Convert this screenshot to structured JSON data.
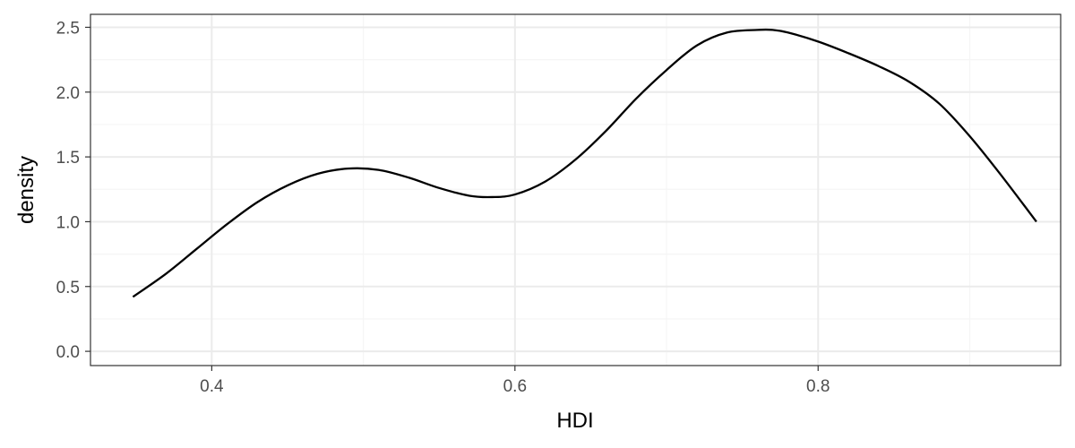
{
  "chart_data": {
    "type": "line",
    "title": "",
    "xlabel": "HDI",
    "ylabel": "density",
    "xlim": [
      0.32,
      0.96
    ],
    "ylim": [
      -0.11,
      2.6
    ],
    "x_ticks": [
      0.4,
      0.6,
      0.8
    ],
    "x_tick_labels": [
      "0.4",
      "0.6",
      "0.8"
    ],
    "y_ticks": [
      0.0,
      0.5,
      1.0,
      1.5,
      2.0,
      2.5
    ],
    "y_tick_labels": [
      "0.0",
      "0.5",
      "1.0",
      "1.5",
      "2.0",
      "2.5"
    ],
    "x_minor_ticks": [
      0.5,
      0.7,
      0.9
    ],
    "y_minor_ticks": [
      0.25,
      0.75,
      1.25,
      1.75,
      2.25
    ],
    "grid": true,
    "theme": "bw",
    "colors": {
      "line": "#000000",
      "grid_major": "#ebebeb",
      "grid_minor": "#f5f5f5",
      "panel_border": "#333333",
      "tick_text": "#4d4d4d"
    },
    "series": [
      {
        "x": [
          0.348,
          0.37,
          0.39,
          0.41,
          0.43,
          0.45,
          0.47,
          0.49,
          0.51,
          0.53,
          0.55,
          0.57,
          0.585,
          0.6,
          0.62,
          0.64,
          0.66,
          0.68,
          0.7,
          0.72,
          0.74,
          0.76,
          0.77,
          0.78,
          0.8,
          0.82,
          0.84,
          0.86,
          0.88,
          0.9,
          0.92,
          0.944
        ],
        "y": [
          0.42,
          0.6,
          0.79,
          0.98,
          1.15,
          1.28,
          1.37,
          1.41,
          1.4,
          1.34,
          1.26,
          1.2,
          1.19,
          1.21,
          1.31,
          1.48,
          1.7,
          1.95,
          2.17,
          2.36,
          2.46,
          2.48,
          2.48,
          2.46,
          2.39,
          2.3,
          2.2,
          2.08,
          1.91,
          1.66,
          1.37,
          1.0
        ]
      }
    ]
  }
}
